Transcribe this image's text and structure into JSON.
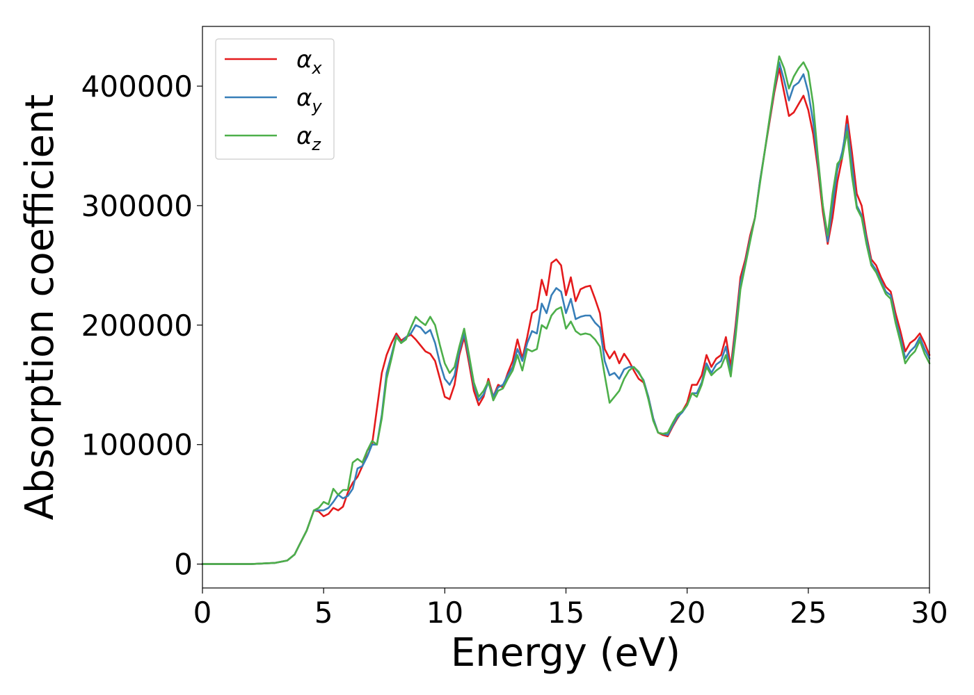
{
  "chart_data": {
    "type": "line",
    "title": "",
    "xlabel": "Energy (eV)",
    "ylabel": "Absorption coefficient",
    "xlim": [
      0,
      30
    ],
    "ylim": [
      -20000,
      450000
    ],
    "xticks": [
      0,
      5,
      10,
      15,
      20,
      25,
      30
    ],
    "xtick_labels": [
      "0",
      "5",
      "10",
      "15",
      "20",
      "25",
      "30"
    ],
    "yticks": [
      0,
      100000,
      200000,
      300000,
      400000
    ],
    "ytick_labels": [
      "0",
      "100000",
      "200000",
      "300000",
      "400000"
    ],
    "grid": false,
    "legend_placement": "top-left",
    "x": [
      0,
      1,
      2,
      3,
      3.5,
      3.8,
      4.0,
      4.3,
      4.6,
      4.8,
      5.0,
      5.2,
      5.4,
      5.6,
      5.8,
      6.0,
      6.2,
      6.4,
      6.6,
      6.8,
      7.0,
      7.2,
      7.4,
      7.6,
      7.8,
      8.0,
      8.2,
      8.4,
      8.6,
      8.8,
      9.0,
      9.2,
      9.4,
      9.6,
      9.8,
      10.0,
      10.2,
      10.4,
      10.6,
      10.8,
      11.0,
      11.2,
      11.4,
      11.6,
      11.8,
      12.0,
      12.2,
      12.4,
      12.6,
      12.8,
      13.0,
      13.2,
      13.4,
      13.6,
      13.8,
      14.0,
      14.2,
      14.4,
      14.6,
      14.8,
      15.0,
      15.2,
      15.4,
      15.6,
      15.8,
      16.0,
      16.2,
      16.4,
      16.6,
      16.8,
      17.0,
      17.2,
      17.4,
      17.6,
      17.8,
      18.0,
      18.2,
      18.4,
      18.6,
      18.8,
      19.0,
      19.2,
      19.4,
      19.6,
      19.8,
      20.0,
      20.2,
      20.4,
      20.6,
      20.8,
      21.0,
      21.2,
      21.4,
      21.6,
      21.8,
      22.0,
      22.2,
      22.4,
      22.6,
      22.8,
      23.0,
      23.2,
      23.4,
      23.6,
      23.8,
      24.0,
      24.2,
      24.4,
      24.6,
      24.8,
      25.0,
      25.2,
      25.4,
      25.6,
      25.8,
      26.0,
      26.2,
      26.4,
      26.6,
      26.8,
      27.0,
      27.2,
      27.4,
      27.6,
      27.8,
      28.0,
      28.2,
      28.4,
      28.6,
      28.8,
      29.0,
      29.2,
      29.4,
      29.6,
      29.8,
      30.0
    ],
    "series": [
      {
        "name": "α",
        "subscript": "x",
        "color": "#e41a1c",
        "values": [
          0,
          0,
          0,
          1000,
          3000,
          8000,
          16000,
          28000,
          45000,
          44000,
          40000,
          42000,
          47000,
          45000,
          48000,
          60000,
          68000,
          73000,
          82000,
          95000,
          100000,
          130000,
          160000,
          175000,
          185000,
          193000,
          187000,
          190000,
          192000,
          188000,
          183000,
          178000,
          176000,
          170000,
          155000,
          140000,
          138000,
          150000,
          175000,
          190000,
          168000,
          145000,
          133000,
          140000,
          155000,
          140000,
          150000,
          148000,
          160000,
          170000,
          188000,
          172000,
          190000,
          210000,
          213000,
          238000,
          225000,
          252000,
          255000,
          250000,
          225000,
          240000,
          220000,
          230000,
          232000,
          233000,
          222000,
          210000,
          180000,
          172000,
          178000,
          168000,
          176000,
          170000,
          162000,
          155000,
          152000,
          140000,
          122000,
          110000,
          108000,
          107000,
          115000,
          122000,
          128000,
          135000,
          150000,
          150000,
          158000,
          175000,
          165000,
          172000,
          175000,
          190000,
          165000,
          200000,
          240000,
          255000,
          275000,
          290000,
          320000,
          345000,
          370000,
          395000,
          415000,
          395000,
          375000,
          378000,
          385000,
          392000,
          380000,
          360000,
          330000,
          295000,
          268000,
          290000,
          320000,
          340000,
          375000,
          345000,
          310000,
          300000,
          275000,
          255000,
          250000,
          240000,
          232000,
          228000,
          210000,
          195000,
          178000,
          185000,
          188000,
          193000,
          185000,
          175000
        ]
      },
      {
        "name": "α",
        "subscript": "y",
        "color": "#377eb8",
        "values": [
          0,
          0,
          0,
          1000,
          3000,
          8000,
          16000,
          28000,
          45000,
          45000,
          45000,
          47000,
          52000,
          58000,
          55000,
          57000,
          63000,
          80000,
          82000,
          90000,
          100000,
          100000,
          125000,
          160000,
          175000,
          191000,
          185000,
          190000,
          193000,
          200000,
          198000,
          193000,
          196000,
          185000,
          168000,
          155000,
          150000,
          158000,
          178000,
          193000,
          172000,
          150000,
          137000,
          142000,
          152000,
          140000,
          148000,
          150000,
          158000,
          165000,
          180000,
          170000,
          185000,
          195000,
          193000,
          218000,
          210000,
          225000,
          231000,
          228000,
          210000,
          222000,
          205000,
          207000,
          208000,
          208000,
          202000,
          198000,
          170000,
          158000,
          160000,
          155000,
          163000,
          165000,
          165000,
          160000,
          154000,
          140000,
          122000,
          110000,
          109000,
          108000,
          116000,
          123000,
          127000,
          133000,
          143000,
          143000,
          152000,
          168000,
          160000,
          167000,
          170000,
          182000,
          160000,
          195000,
          235000,
          252000,
          272000,
          290000,
          320000,
          345000,
          372000,
          398000,
          420000,
          405000,
          388000,
          400000,
          403000,
          410000,
          395000,
          370000,
          335000,
          300000,
          270000,
          300000,
          330000,
          345000,
          368000,
          335000,
          300000,
          292000,
          272000,
          252000,
          246000,
          237000,
          228000,
          225000,
          205000,
          190000,
          172000,
          178000,
          182000,
          190000,
          180000,
          172000
        ]
      },
      {
        "name": "α",
        "subscript": "z",
        "color": "#4daf4a",
        "values": [
          0,
          0,
          0,
          1000,
          3000,
          8000,
          16000,
          28000,
          45000,
          47000,
          52000,
          50000,
          63000,
          58000,
          62000,
          62000,
          85000,
          88000,
          85000,
          95000,
          103000,
          100000,
          122000,
          155000,
          172000,
          190000,
          185000,
          188000,
          198000,
          207000,
          203000,
          200000,
          207000,
          200000,
          183000,
          168000,
          160000,
          165000,
          182000,
          197000,
          175000,
          152000,
          140000,
          145000,
          153000,
          137000,
          145000,
          147000,
          155000,
          162000,
          175000,
          162000,
          180000,
          178000,
          180000,
          200000,
          197000,
          208000,
          213000,
          215000,
          197000,
          203000,
          195000,
          192000,
          193000,
          192000,
          188000,
          182000,
          158000,
          135000,
          140000,
          145000,
          155000,
          162000,
          165000,
          161000,
          153000,
          138000,
          120000,
          110000,
          109000,
          110000,
          118000,
          125000,
          128000,
          133000,
          143000,
          140000,
          150000,
          165000,
          158000,
          162000,
          165000,
          175000,
          157000,
          190000,
          230000,
          250000,
          270000,
          290000,
          318000,
          345000,
          373000,
          400000,
          425000,
          415000,
          398000,
          408000,
          415000,
          420000,
          412000,
          385000,
          340000,
          300000,
          275000,
          310000,
          335000,
          340000,
          362000,
          325000,
          298000,
          290000,
          268000,
          250000,
          244000,
          235000,
          226000,
          222000,
          202000,
          186000,
          168000,
          174000,
          178000,
          187000,
          176000,
          168000
        ]
      }
    ]
  }
}
